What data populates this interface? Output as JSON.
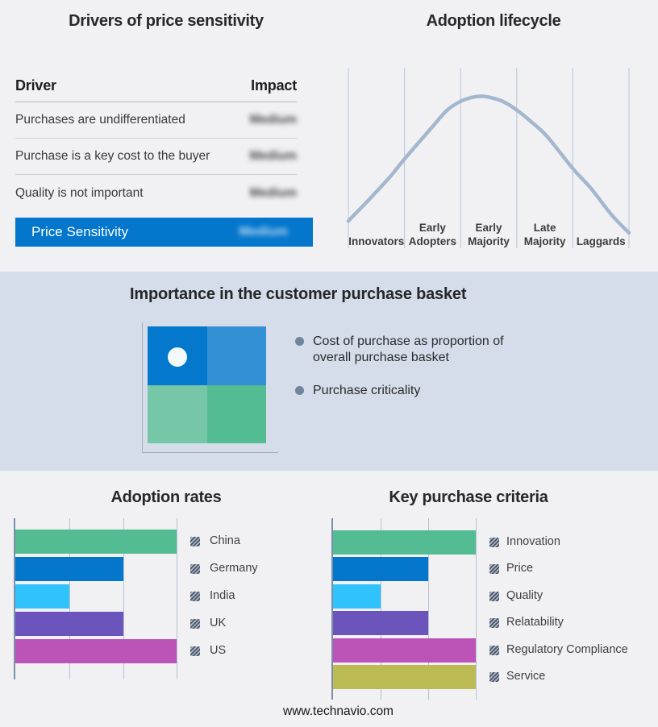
{
  "page": {
    "footer": "www.technavio.com",
    "background": "#f1f1f4",
    "band_background": "#d4dde9"
  },
  "chart_data": [
    {
      "id": "drivers_of_price_sensitivity",
      "type": "table",
      "title": "Drivers of price sensitivity",
      "columns": [
        "Driver",
        "Impact"
      ],
      "rows": [
        {
          "driver": "Purchases are undifferentiated",
          "impact": "Medium"
        },
        {
          "driver": "Purchase is a key cost to the buyer",
          "impact": "Medium"
        },
        {
          "driver": "Quality is not important",
          "impact": "Medium"
        }
      ],
      "highlight_row": {
        "driver": "Price Sensitivity",
        "impact": "Medium",
        "color": "#0477cd"
      },
      "impact_values_blurred": true
    },
    {
      "id": "adoption_lifecycle",
      "type": "line",
      "title": "Adoption lifecycle",
      "stages": [
        "Innovators",
        "Early Adopters",
        "Early Majority",
        "Late Majority",
        "Laggards"
      ],
      "curve_color": "#a4b7ce",
      "grid_color": "#b7c6db",
      "curve_points_normalized": [
        [
          0.0,
          0.849
        ],
        [
          0.08,
          0.72
        ],
        [
          0.151,
          0.6
        ],
        [
          0.201,
          0.504
        ],
        [
          0.294,
          0.337
        ],
        [
          0.351,
          0.237
        ],
        [
          0.4,
          0.186
        ],
        [
          0.437,
          0.166
        ],
        [
          0.473,
          0.158
        ],
        [
          0.509,
          0.166
        ],
        [
          0.552,
          0.188
        ],
        [
          0.599,
          0.233
        ],
        [
          0.652,
          0.3
        ],
        [
          0.709,
          0.382
        ],
        [
          0.798,
          0.555
        ],
        [
          0.866,
          0.671
        ],
        [
          0.938,
          0.815
        ],
        [
          1.0,
          0.915
        ]
      ]
    },
    {
      "id": "adoption_rates",
      "type": "bar",
      "title": "Adoption rates",
      "orientation": "horizontal",
      "categories": [
        "China",
        "Germany",
        "India",
        "UK",
        "US"
      ],
      "values": [
        3,
        2,
        1,
        2,
        3
      ],
      "colors": [
        "#54bc92",
        "#0477cd",
        "#30c2fb",
        "#6c54bd",
        "#bc53b7"
      ],
      "xlim": [
        0,
        3
      ],
      "grid": true,
      "legend_position": "right"
    },
    {
      "id": "key_purchase_criteria",
      "type": "bar",
      "title": "Key purchase criteria",
      "orientation": "horizontal",
      "categories": [
        "Innovation",
        "Price",
        "Quality",
        "Relatability",
        "Regulatory Compliance",
        "Service"
      ],
      "values": [
        3,
        2,
        1,
        2,
        3,
        3
      ],
      "colors": [
        "#54bc92",
        "#0477cd",
        "#30c2fb",
        "#6c54bd",
        "#bc53b7",
        "#bcba52"
      ],
      "xlim": [
        0,
        3
      ],
      "grid": true,
      "legend_position": "right"
    }
  ],
  "basket_band": {
    "title": "Importance in the customer purchase basket",
    "bullets": [
      "Cost of purchase as proportion of overall purchase basket",
      "Purchase criticality"
    ],
    "quadrant_colors": {
      "top_left": "#0478cd",
      "top_right": "#3390d5",
      "bottom_left": "#76c6a8",
      "bottom_right": "#54bc92"
    },
    "marker": "white-dot-top-left"
  }
}
